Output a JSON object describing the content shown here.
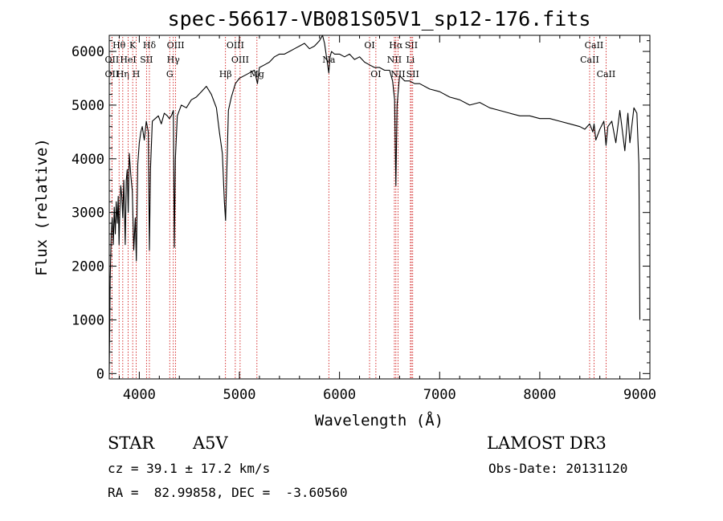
{
  "chart_data": {
    "type": "line",
    "title": "spec-56617-VB081S05V1_sp12-176.fits",
    "xlabel": "Wavelength (Å)",
    "ylabel": "Flux (relative)",
    "xlim": [
      3700,
      9100
    ],
    "ylim": [
      -100,
      6300
    ],
    "xticks": [
      4000,
      5000,
      6000,
      7000,
      8000,
      9000
    ],
    "yticks": [
      0,
      1000,
      2000,
      3000,
      4000,
      5000,
      6000
    ],
    "series": [
      {
        "name": "spectrum",
        "x": [
          3700,
          3710,
          3720,
          3730,
          3740,
          3750,
          3760,
          3770,
          3780,
          3790,
          3798,
          3805,
          3815,
          3825,
          3835,
          3845,
          3860,
          3870,
          3880,
          3889,
          3900,
          3915,
          3930,
          3945,
          3960,
          3970,
          3985,
          4000,
          4015,
          4030,
          4050,
          4070,
          4090,
          4101,
          4112,
          4130,
          4160,
          4190,
          4220,
          4250,
          4280,
          4300,
          4320,
          4340,
          4350,
          4360,
          4380,
          4420,
          4470,
          4520,
          4570,
          4620,
          4670,
          4720,
          4770,
          4800,
          4830,
          4850,
          4862,
          4875,
          4890,
          4920,
          4960,
          5000,
          5050,
          5100,
          5150,
          5180,
          5200,
          5250,
          5300,
          5350,
          5400,
          5450,
          5500,
          5550,
          5600,
          5650,
          5700,
          5750,
          5800,
          5830,
          5850,
          5870,
          5893,
          5905,
          5920,
          5950,
          6000,
          6050,
          6100,
          6150,
          6200,
          6250,
          6300,
          6350,
          6400,
          6450,
          6500,
          6530,
          6550,
          6563,
          6575,
          6600,
          6650,
          6700,
          6750,
          6800,
          6900,
          7000,
          7100,
          7200,
          7300,
          7400,
          7500,
          7600,
          7700,
          7800,
          7900,
          8000,
          8100,
          8200,
          8300,
          8400,
          8450,
          8498,
          8530,
          8542,
          8560,
          8600,
          8640,
          8662,
          8680,
          8720,
          8760,
          8800,
          8850,
          8880,
          8900,
          8940,
          8970,
          8990,
          9000
        ],
        "values": [
          50,
          1800,
          2600,
          2900,
          2400,
          3100,
          2600,
          3200,
          2800,
          3300,
          2400,
          3000,
          3500,
          3300,
          2900,
          3600,
          2400,
          3600,
          3800,
          3000,
          4100,
          3700,
          3400,
          2300,
          2900,
          2100,
          3900,
          4300,
          4500,
          4600,
          4350,
          4700,
          4500,
          2300,
          3800,
          4700,
          4750,
          4800,
          4650,
          4850,
          4800,
          4750,
          4800,
          4900,
          2350,
          4000,
          4800,
          5000,
          4950,
          5100,
          5150,
          5250,
          5350,
          5200,
          4950,
          4500,
          4100,
          3200,
          2850,
          3800,
          4900,
          5150,
          5400,
          5500,
          5550,
          5600,
          5650,
          5400,
          5700,
          5750,
          5800,
          5900,
          5950,
          5950,
          6000,
          6050,
          6100,
          6150,
          6050,
          6100,
          6200,
          6300,
          6150,
          5900,
          5600,
          5900,
          6000,
          5950,
          5950,
          5900,
          5950,
          5850,
          5900,
          5800,
          5750,
          5700,
          5700,
          5650,
          5650,
          5450,
          5100,
          3500,
          5000,
          5550,
          5450,
          5450,
          5400,
          5400,
          5300,
          5250,
          5150,
          5100,
          5000,
          5050,
          4950,
          4900,
          4850,
          4800,
          4800,
          4750,
          4750,
          4700,
          4650,
          4600,
          4550,
          4650,
          4500,
          4650,
          4350,
          4550,
          4700,
          4250,
          4600,
          4700,
          4300,
          4900,
          4150,
          4850,
          4300,
          4950,
          4850,
          3900,
          1000
        ]
      }
    ],
    "line_marks": [
      {
        "label": "Hθ",
        "x": 3798,
        "row": 0
      },
      {
        "label": "OII",
        "x": 3727,
        "row": 1
      },
      {
        "label": "OII",
        "x": 3727,
        "row": 2
      },
      {
        "label": "Hη",
        "x": 3835,
        "row": 2
      },
      {
        "label": "K",
        "x": 3934,
        "row": 0
      },
      {
        "label": "HeI",
        "x": 3889,
        "row": 1
      },
      {
        "label": "H",
        "x": 3969,
        "row": 2
      },
      {
        "label": "Hδ",
        "x": 4101,
        "row": 0
      },
      {
        "label": "SII",
        "x": 4072,
        "row": 1
      },
      {
        "label": "OIII",
        "x": 4363,
        "row": 0
      },
      {
        "label": "Hγ",
        "x": 4340,
        "row": 1
      },
      {
        "label": "G",
        "x": 4304,
        "row": 2
      },
      {
        "label": "Hβ",
        "x": 4861,
        "row": 2
      },
      {
        "label": "OIII",
        "x": 4959,
        "row": 0
      },
      {
        "label": "OIII",
        "x": 5007,
        "row": 1
      },
      {
        "label": "Mg",
        "x": 5175,
        "row": 2
      },
      {
        "label": "Na",
        "x": 5893,
        "row": 1
      },
      {
        "label": "OI",
        "x": 6300,
        "row": 0
      },
      {
        "label": "OI",
        "x": 6363,
        "row": 2
      },
      {
        "label": "Hα",
        "x": 6563,
        "row": 0
      },
      {
        "label": "NII",
        "x": 6548,
        "row": 1
      },
      {
        "label": "NII",
        "x": 6584,
        "row": 2
      },
      {
        "label": "SII",
        "x": 6717,
        "row": 0
      },
      {
        "label": "Li",
        "x": 6708,
        "row": 1
      },
      {
        "label": "SII",
        "x": 6731,
        "row": 2
      },
      {
        "label": "CaII",
        "x": 8542,
        "row": 0
      },
      {
        "label": "CaII",
        "x": 8498,
        "row": 1
      },
      {
        "label": "CaII",
        "x": 8662,
        "row": 2
      }
    ]
  },
  "info": {
    "class": "STAR",
    "subclass": "A5V",
    "survey": "LAMOST DR3",
    "cz": "cz = 39.1 ± 17.2 km/s",
    "obs_date": "Obs-Date: 20131120",
    "coords": "RA =  82.99858, DEC =  -3.60560"
  },
  "colors": {
    "line": "#000000",
    "marker": "#cc0000"
  }
}
